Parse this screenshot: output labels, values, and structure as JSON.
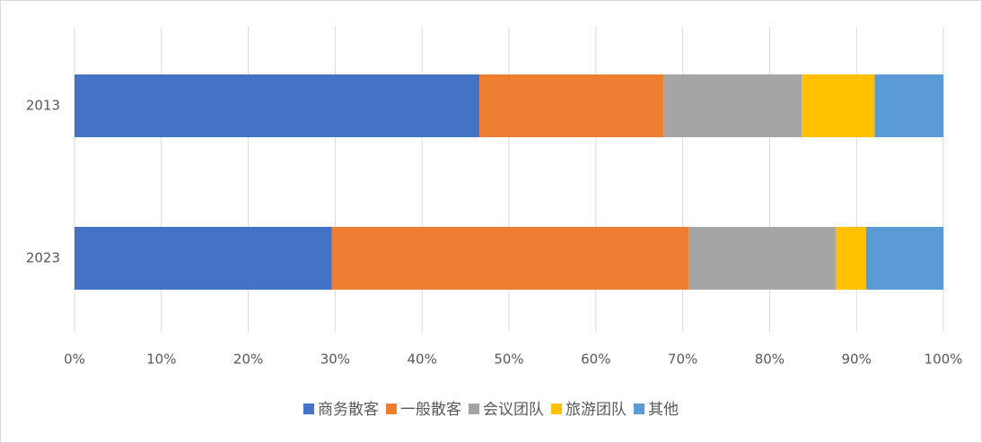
{
  "chart_data": {
    "type": "bar",
    "orientation": "horizontal",
    "stacked": true,
    "categories": [
      "2013",
      "2023"
    ],
    "series": [
      {
        "name": "商务散客",
        "color": "#4472c4",
        "values": [
          46.6,
          29.6
        ]
      },
      {
        "name": "一般散客",
        "color": "#ed7d31",
        "values": [
          21.2,
          41.1
        ]
      },
      {
        "name": "会议团队",
        "color": "#a5a5a5",
        "values": [
          15.9,
          16.9
        ]
      },
      {
        "name": "旅游团队",
        "color": "#ffc000",
        "values": [
          8.4,
          3.5
        ]
      },
      {
        "name": "其他",
        "color": "#5b9bd5",
        "values": [
          7.9,
          8.9
        ]
      }
    ],
    "xlim": [
      0,
      100
    ],
    "xticks": [
      {
        "value": 0,
        "label": "0%"
      },
      {
        "value": 10,
        "label": "10%"
      },
      {
        "value": 20,
        "label": "20%"
      },
      {
        "value": 30,
        "label": "30%"
      },
      {
        "value": 40,
        "label": "40%"
      },
      {
        "value": 50,
        "label": "50%"
      },
      {
        "value": 60,
        "label": "60%"
      },
      {
        "value": 70,
        "label": "70%"
      },
      {
        "value": 80,
        "label": "80%"
      },
      {
        "value": 90,
        "label": "90%"
      },
      {
        "value": 100,
        "label": "100%"
      }
    ],
    "grid": true,
    "legend": "bottom"
  }
}
